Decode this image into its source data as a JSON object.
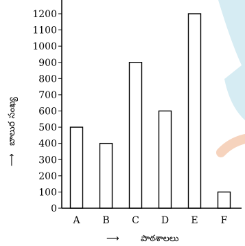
{
  "chart_data": {
    "type": "bar",
    "categories": [
      "A",
      "B",
      "C",
      "D",
      "E",
      "F"
    ],
    "values": [
      500,
      400,
      900,
      600,
      1200,
      100
    ],
    "xlabel": "పాఠశాలలు",
    "ylabel": "బాలుర సంఖ్య",
    "ylim": [
      0,
      1200
    ],
    "yticks": [
      0,
      100,
      200,
      300,
      400,
      500,
      600,
      700,
      800,
      900,
      1000,
      1100,
      1200
    ],
    "grid": false,
    "colors": {
      "bar_fill": "#ffffff",
      "bar_stroke": "#000000",
      "decor_blue": "#d6ecf3",
      "decor_orange": "#f6d3bd"
    }
  }
}
